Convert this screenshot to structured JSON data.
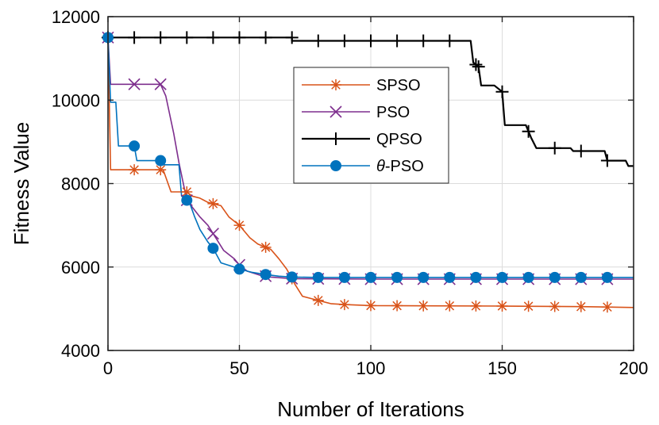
{
  "chart_data": {
    "type": "line",
    "title": "",
    "xlabel": "Number of Iterations",
    "ylabel": "Fitness Value",
    "xlim": [
      0,
      200
    ],
    "ylim": [
      4000,
      12000
    ],
    "xticks": [
      "0",
      "50",
      "100",
      "150",
      "200"
    ],
    "yticks": [
      "4000",
      "6000",
      "8000",
      "10000",
      "12000"
    ],
    "grid": true,
    "legend_position": "upper-center",
    "series": [
      {
        "name": "SPSO",
        "color": "#D95319",
        "marker": "asterisk",
        "points": [
          [
            0,
            11500
          ],
          [
            1,
            8330
          ],
          [
            21,
            8330
          ],
          [
            24,
            7800
          ],
          [
            30,
            7800
          ],
          [
            32,
            7700
          ],
          [
            35,
            7650
          ],
          [
            38,
            7550
          ],
          [
            43,
            7470
          ],
          [
            46,
            7200
          ],
          [
            50,
            7000
          ],
          [
            54,
            6700
          ],
          [
            57,
            6550
          ],
          [
            62,
            6420
          ],
          [
            65,
            6200
          ],
          [
            68,
            5950
          ],
          [
            71,
            5600
          ],
          [
            74,
            5300
          ],
          [
            80,
            5200
          ],
          [
            85,
            5120
          ],
          [
            90,
            5100
          ],
          [
            100,
            5075
          ],
          [
            120,
            5070
          ],
          [
            150,
            5065
          ],
          [
            180,
            5050
          ],
          [
            200,
            5030
          ]
        ],
        "marker_x": [
          0,
          10,
          20,
          30,
          40,
          50,
          60,
          70,
          80,
          90,
          100,
          110,
          120,
          130,
          140,
          150,
          160,
          170,
          180,
          190
        ]
      },
      {
        "name": "PSO",
        "color": "#7E2F8E",
        "marker": "x",
        "points": [
          [
            0,
            11500
          ],
          [
            1,
            10380
          ],
          [
            20,
            10380
          ],
          [
            22,
            10100
          ],
          [
            25,
            9200
          ],
          [
            27,
            8500
          ],
          [
            30,
            7600
          ],
          [
            35,
            7200
          ],
          [
            38,
            7000
          ],
          [
            40,
            6800
          ],
          [
            44,
            6400
          ],
          [
            48,
            6200
          ],
          [
            50,
            6050
          ],
          [
            53,
            5900
          ],
          [
            58,
            5800
          ],
          [
            62,
            5760
          ],
          [
            70,
            5720
          ],
          [
            100,
            5710
          ],
          [
            200,
            5710
          ]
        ],
        "marker_x": [
          0,
          10,
          20,
          30,
          40,
          50,
          60,
          70,
          80,
          90,
          100,
          110,
          120,
          130,
          140,
          150,
          160,
          170,
          180,
          190
        ]
      },
      {
        "name": "QPSO",
        "color": "#000000",
        "marker": "plus",
        "points": [
          [
            0,
            11500
          ],
          [
            70,
            11500
          ],
          [
            70,
            11420
          ],
          [
            138,
            11420
          ],
          [
            139,
            10900
          ],
          [
            141,
            10800
          ],
          [
            142,
            10350
          ],
          [
            147,
            10350
          ],
          [
            150,
            10200
          ],
          [
            151,
            9400
          ],
          [
            159,
            9400
          ],
          [
            161,
            9100
          ],
          [
            163,
            8850
          ],
          [
            176,
            8850
          ],
          [
            177,
            8780
          ],
          [
            189,
            8780
          ],
          [
            190,
            8550
          ],
          [
            197,
            8550
          ],
          [
            198,
            8420
          ],
          [
            200,
            8420
          ]
        ],
        "marker_x": [
          0,
          10,
          20,
          30,
          40,
          50,
          60,
          70,
          80,
          90,
          100,
          110,
          120,
          130,
          140,
          141,
          150,
          160,
          170,
          180,
          190
        ]
      },
      {
        "name": "θ-PSO",
        "color": "#0072BD",
        "marker": "circle",
        "points": [
          [
            0,
            11500
          ],
          [
            1,
            9950
          ],
          [
            3,
            9950
          ],
          [
            4,
            8900
          ],
          [
            10,
            8900
          ],
          [
            11,
            8550
          ],
          [
            20,
            8550
          ],
          [
            21,
            8450
          ],
          [
            27,
            8450
          ],
          [
            28,
            7700
          ],
          [
            31,
            7550
          ],
          [
            33,
            7200
          ],
          [
            35,
            6900
          ],
          [
            38,
            6600
          ],
          [
            40,
            6450
          ],
          [
            43,
            6100
          ],
          [
            48,
            6000
          ],
          [
            50,
            5950
          ],
          [
            55,
            5870
          ],
          [
            60,
            5820
          ],
          [
            65,
            5780
          ],
          [
            70,
            5760
          ],
          [
            80,
            5750
          ],
          [
            200,
            5750
          ]
        ],
        "marker_x": [
          0,
          10,
          20,
          30,
          40,
          50,
          60,
          70,
          80,
          90,
          100,
          110,
          120,
          130,
          140,
          150,
          160,
          170,
          180,
          190
        ]
      }
    ]
  }
}
